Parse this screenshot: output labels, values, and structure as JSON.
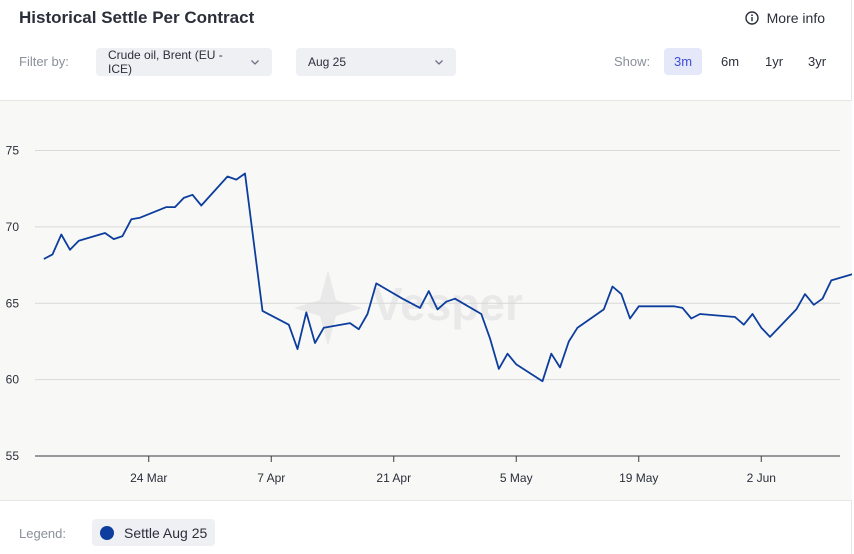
{
  "header": {
    "title": "Historical Settle Per Contract",
    "more_info_label": "More info"
  },
  "filters": {
    "label": "Filter by:",
    "commodity": "Crude oil, Brent (EU - ICE)",
    "contract": "Aug 25"
  },
  "show": {
    "label": "Show:",
    "ranges": [
      "3m",
      "6m",
      "1yr",
      "3yr"
    ],
    "active": "3m"
  },
  "legend": {
    "label": "Legend:",
    "series_name": "Settle Aug 25"
  },
  "watermark": "Vesper",
  "colors": {
    "series": "#0d3e9e",
    "active_range": "#3d4fd6",
    "accent_bg": "#e4e8f8"
  },
  "chart_data": {
    "type": "line",
    "title": "Historical Settle Per Contract",
    "xlabel": "",
    "ylabel": "",
    "ylim": [
      55,
      77
    ],
    "yticks": [
      55,
      60,
      65,
      70,
      75
    ],
    "xlim": [
      "2025-03-11",
      "2025-06-11"
    ],
    "xticks": [
      {
        "date": "2025-03-24",
        "label": "24 Mar"
      },
      {
        "date": "2025-04-07",
        "label": "7 Apr"
      },
      {
        "date": "2025-04-21",
        "label": "21 Apr"
      },
      {
        "date": "2025-05-05",
        "label": "5 May"
      },
      {
        "date": "2025-05-19",
        "label": "19 May"
      },
      {
        "date": "2025-06-02",
        "label": "2 Jun"
      }
    ],
    "grid": "horizontal",
    "legend_position": "bottom-left",
    "series": [
      {
        "name": "Settle Aug 25",
        "points": [
          [
            "2025-03-12",
            67.9
          ],
          [
            "2025-03-13",
            68.2
          ],
          [
            "2025-03-14",
            69.5
          ],
          [
            "2025-03-15",
            68.5
          ],
          [
            "2025-03-16",
            69.1
          ],
          [
            "2025-03-19",
            69.6
          ],
          [
            "2025-03-20",
            69.2
          ],
          [
            "2025-03-21",
            69.4
          ],
          [
            "2025-03-22",
            70.5
          ],
          [
            "2025-03-23",
            70.6
          ],
          [
            "2025-03-26",
            71.3
          ],
          [
            "2025-03-27",
            71.3
          ],
          [
            "2025-03-28",
            71.9
          ],
          [
            "2025-03-29",
            72.1
          ],
          [
            "2025-03-30",
            71.4
          ],
          [
            "2025-04-02",
            73.3
          ],
          [
            "2025-04-03",
            73.1
          ],
          [
            "2025-04-04",
            73.5
          ],
          [
            "2025-04-06",
            64.5
          ],
          [
            "2025-04-09",
            63.6
          ],
          [
            "2025-04-10",
            62.0
          ],
          [
            "2025-04-11",
            64.4
          ],
          [
            "2025-04-12",
            62.4
          ],
          [
            "2025-04-13",
            63.4
          ],
          [
            "2025-04-16",
            63.7
          ],
          [
            "2025-04-17",
            63.3
          ],
          [
            "2025-04-18",
            64.3
          ],
          [
            "2025-04-19",
            66.3
          ],
          [
            "2025-04-22",
            65.3
          ],
          [
            "2025-04-24",
            64.7
          ],
          [
            "2025-04-25",
            65.8
          ],
          [
            "2025-04-26",
            64.6
          ],
          [
            "2025-04-27",
            65.1
          ],
          [
            "2025-04-28",
            65.3
          ],
          [
            "2025-05-01",
            64.3
          ],
          [
            "2025-05-02",
            62.7
          ],
          [
            "2025-05-03",
            60.7
          ],
          [
            "2025-05-04",
            61.7
          ],
          [
            "2025-05-05",
            61.0
          ],
          [
            "2025-05-08",
            59.9
          ],
          [
            "2025-05-09",
            61.7
          ],
          [
            "2025-05-10",
            60.8
          ],
          [
            "2025-05-11",
            62.5
          ],
          [
            "2025-05-12",
            63.4
          ],
          [
            "2025-05-15",
            64.6
          ],
          [
            "2025-05-16",
            66.1
          ],
          [
            "2025-05-17",
            65.6
          ],
          [
            "2025-05-18",
            64.0
          ],
          [
            "2025-05-19",
            64.8
          ],
          [
            "2025-05-23",
            64.8
          ],
          [
            "2025-05-24",
            64.7
          ],
          [
            "2025-05-25",
            64.0
          ],
          [
            "2025-05-26",
            64.3
          ],
          [
            "2025-05-30",
            64.1
          ],
          [
            "2025-05-31",
            63.6
          ],
          [
            "2025-06-01",
            64.3
          ],
          [
            "2025-06-02",
            63.4
          ],
          [
            "2025-06-03",
            62.8
          ],
          [
            "2025-06-06",
            64.6
          ],
          [
            "2025-06-07",
            65.6
          ],
          [
            "2025-06-08",
            64.9
          ],
          [
            "2025-06-09",
            65.3
          ],
          [
            "2025-06-10",
            66.5
          ],
          [
            "2025-06-13",
            67.0
          ]
        ]
      }
    ]
  }
}
